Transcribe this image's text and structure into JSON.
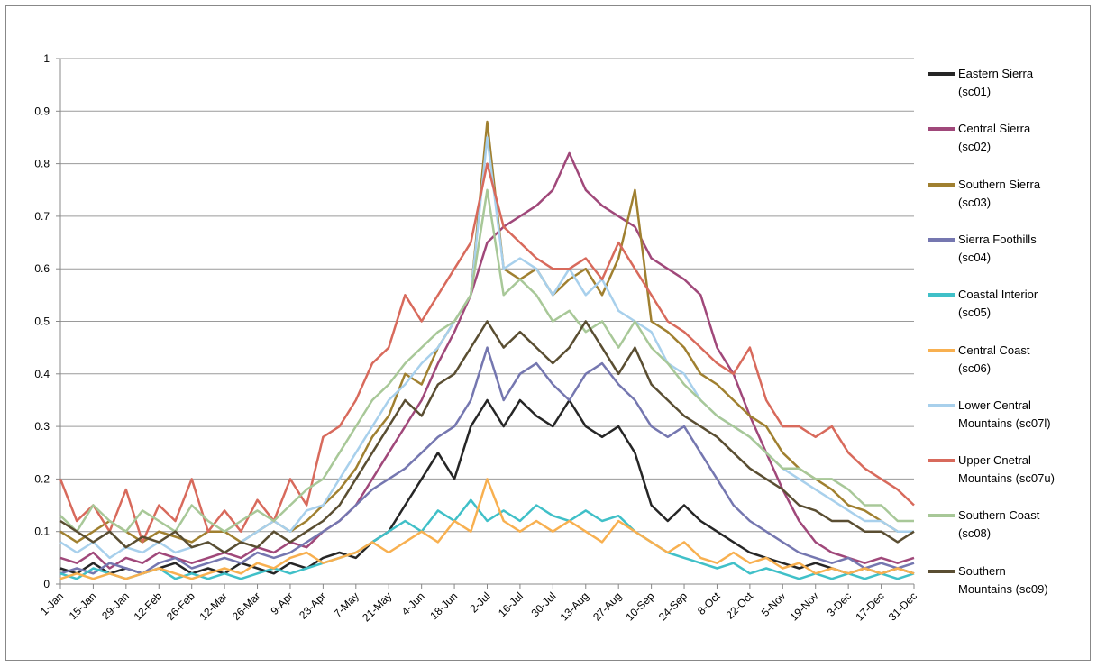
{
  "chart_data": {
    "type": "line",
    "grid": true,
    "legend": "right",
    "categories": [
      "1-Jan",
      null,
      "15-Jan",
      null,
      "29-Jan",
      null,
      "12-Feb",
      null,
      "26-Feb",
      null,
      "12-Mar",
      null,
      "26-Mar",
      null,
      "9-Apr",
      null,
      "23-Apr",
      null,
      "7-May",
      null,
      "21-May",
      null,
      "4-Jun",
      null,
      "18-Jun",
      null,
      "2-Jul",
      null,
      "16-Jul",
      null,
      "30-Jul",
      null,
      "13-Aug",
      null,
      "27-Aug",
      null,
      "10-Sep",
      null,
      "24-Sep",
      null,
      "8-Oct",
      null,
      "22-Oct",
      null,
      "5-Nov",
      null,
      "19-Nov",
      null,
      "3-Dec",
      null,
      "17-Dec",
      null,
      "31-Dec"
    ],
    "ylim": [
      0,
      1
    ],
    "yticks": [
      0,
      0.1,
      0.2,
      0.3,
      0.4,
      0.5,
      0.6,
      0.7,
      0.8,
      0.9,
      1
    ],
    "series": [
      {
        "name": "Eastern Sierra (sc01)",
        "color": "#262626",
        "values": [
          0.03,
          0.02,
          0.04,
          0.02,
          0.03,
          0.02,
          0.03,
          0.04,
          0.02,
          0.03,
          0.02,
          0.04,
          0.03,
          0.02,
          0.04,
          0.03,
          0.05,
          0.06,
          0.05,
          0.08,
          0.1,
          0.15,
          0.2,
          0.25,
          0.2,
          0.3,
          0.35,
          0.3,
          0.35,
          0.32,
          0.3,
          0.35,
          0.3,
          0.28,
          0.3,
          0.25,
          0.15,
          0.12,
          0.15,
          0.12,
          0.1,
          0.08,
          0.06,
          0.05,
          0.04,
          0.03,
          0.04,
          0.03,
          0.02,
          0.03,
          0.02,
          0.03,
          0.02
        ]
      },
      {
        "name": "Central Sierra (sc02)",
        "color": "#a0487a",
        "values": [
          0.05,
          0.04,
          0.06,
          0.03,
          0.05,
          0.04,
          0.06,
          0.05,
          0.04,
          0.05,
          0.06,
          0.05,
          0.07,
          0.06,
          0.08,
          0.07,
          0.1,
          0.12,
          0.15,
          0.2,
          0.25,
          0.3,
          0.35,
          0.42,
          0.48,
          0.55,
          0.65,
          0.68,
          0.7,
          0.72,
          0.75,
          0.82,
          0.75,
          0.72,
          0.7,
          0.68,
          0.62,
          0.6,
          0.58,
          0.55,
          0.45,
          0.4,
          0.32,
          0.25,
          0.18,
          0.12,
          0.08,
          0.06,
          0.05,
          0.04,
          0.05,
          0.04,
          0.05
        ]
      },
      {
        "name": "Southern Sierra (sc03)",
        "color": "#a08030",
        "values": [
          0.1,
          0.08,
          0.1,
          0.12,
          0.1,
          0.08,
          0.1,
          0.09,
          0.08,
          0.1,
          0.1,
          0.08,
          0.1,
          0.12,
          0.1,
          0.12,
          0.15,
          0.18,
          0.22,
          0.28,
          0.32,
          0.4,
          0.38,
          0.45,
          0.5,
          0.55,
          0.88,
          0.6,
          0.58,
          0.6,
          0.55,
          0.58,
          0.6,
          0.55,
          0.62,
          0.75,
          0.5,
          0.48,
          0.45,
          0.4,
          0.38,
          0.35,
          0.32,
          0.3,
          0.25,
          0.22,
          0.2,
          0.18,
          0.15,
          0.14,
          0.12,
          0.1,
          0.1
        ]
      },
      {
        "name": "Sierra Foothills (sc04)",
        "color": "#7577b0",
        "values": [
          0.02,
          0.03,
          0.02,
          0.04,
          0.03,
          0.02,
          0.04,
          0.05,
          0.03,
          0.04,
          0.05,
          0.04,
          0.06,
          0.05,
          0.06,
          0.08,
          0.1,
          0.12,
          0.15,
          0.18,
          0.2,
          0.22,
          0.25,
          0.28,
          0.3,
          0.35,
          0.45,
          0.35,
          0.4,
          0.42,
          0.38,
          0.35,
          0.4,
          0.42,
          0.38,
          0.35,
          0.3,
          0.28,
          0.3,
          0.25,
          0.2,
          0.15,
          0.12,
          0.1,
          0.08,
          0.06,
          0.05,
          0.04,
          0.05,
          0.03,
          0.04,
          0.03,
          0.04
        ]
      },
      {
        "name": "Coastal Interior (sc05)",
        "color": "#40c0c8",
        "values": [
          0.02,
          0.01,
          0.03,
          0.02,
          0.01,
          0.02,
          0.03,
          0.01,
          0.02,
          0.01,
          0.02,
          0.01,
          0.02,
          0.03,
          0.02,
          0.03,
          0.04,
          0.05,
          0.06,
          0.08,
          0.1,
          0.12,
          0.1,
          0.14,
          0.12,
          0.16,
          0.12,
          0.14,
          0.12,
          0.15,
          0.13,
          0.12,
          0.14,
          0.12,
          0.13,
          0.1,
          0.08,
          0.06,
          0.05,
          0.04,
          0.03,
          0.04,
          0.02,
          0.03,
          0.02,
          0.01,
          0.02,
          0.01,
          0.02,
          0.01,
          0.02,
          0.01,
          0.02
        ]
      },
      {
        "name": "Central Coast (sc06)",
        "color": "#f8b050",
        "values": [
          0.01,
          0.02,
          0.01,
          0.02,
          0.01,
          0.02,
          0.03,
          0.02,
          0.01,
          0.02,
          0.03,
          0.02,
          0.04,
          0.03,
          0.05,
          0.06,
          0.04,
          0.05,
          0.06,
          0.08,
          0.06,
          0.08,
          0.1,
          0.08,
          0.12,
          0.1,
          0.2,
          0.12,
          0.1,
          0.12,
          0.1,
          0.12,
          0.1,
          0.08,
          0.12,
          0.1,
          0.08,
          0.06,
          0.08,
          0.05,
          0.04,
          0.06,
          0.04,
          0.05,
          0.03,
          0.04,
          0.02,
          0.03,
          0.02,
          0.03,
          0.02,
          0.03,
          0.02
        ]
      },
      {
        "name": "Lower Central Mountains (sc07l)",
        "color": "#a8d0ec",
        "values": [
          0.08,
          0.06,
          0.08,
          0.05,
          0.07,
          0.06,
          0.08,
          0.06,
          0.07,
          0.08,
          0.06,
          0.08,
          0.1,
          0.12,
          0.1,
          0.14,
          0.15,
          0.2,
          0.25,
          0.3,
          0.35,
          0.38,
          0.42,
          0.45,
          0.5,
          0.55,
          0.85,
          0.6,
          0.62,
          0.6,
          0.55,
          0.6,
          0.55,
          0.58,
          0.52,
          0.5,
          0.48,
          0.42,
          0.4,
          0.35,
          0.32,
          0.3,
          0.28,
          0.25,
          0.22,
          0.2,
          0.18,
          0.16,
          0.14,
          0.12,
          0.12,
          0.1,
          0.1
        ]
      },
      {
        "name": "Upper Cnetral Mountains (sc07u)",
        "color": "#d86a5c",
        "values": [
          0.2,
          0.12,
          0.15,
          0.1,
          0.18,
          0.08,
          0.15,
          0.12,
          0.2,
          0.1,
          0.14,
          0.1,
          0.16,
          0.12,
          0.2,
          0.15,
          0.28,
          0.3,
          0.35,
          0.42,
          0.45,
          0.55,
          0.5,
          0.55,
          0.6,
          0.65,
          0.8,
          0.68,
          0.65,
          0.62,
          0.6,
          0.6,
          0.62,
          0.58,
          0.65,
          0.6,
          0.55,
          0.5,
          0.48,
          0.45,
          0.42,
          0.4,
          0.45,
          0.35,
          0.3,
          0.3,
          0.28,
          0.3,
          0.25,
          0.22,
          0.2,
          0.18,
          0.15
        ]
      },
      {
        "name": "Southern Coast (sc08)",
        "color": "#a8c898",
        "values": [
          0.13,
          0.1,
          0.15,
          0.12,
          0.1,
          0.14,
          0.12,
          0.1,
          0.15,
          0.12,
          0.1,
          0.12,
          0.14,
          0.12,
          0.15,
          0.18,
          0.2,
          0.25,
          0.3,
          0.35,
          0.38,
          0.42,
          0.45,
          0.48,
          0.5,
          0.55,
          0.75,
          0.55,
          0.58,
          0.55,
          0.5,
          0.52,
          0.48,
          0.5,
          0.45,
          0.5,
          0.45,
          0.42,
          0.38,
          0.35,
          0.32,
          0.3,
          0.28,
          0.25,
          0.22,
          0.22,
          0.2,
          0.2,
          0.18,
          0.15,
          0.15,
          0.12,
          0.12
        ]
      },
      {
        "name": "Southern Mountains (sc09)",
        "color": "#5a4e32",
        "values": [
          0.12,
          0.1,
          0.08,
          0.1,
          0.07,
          0.09,
          0.08,
          0.1,
          0.07,
          0.08,
          0.06,
          0.08,
          0.07,
          0.1,
          0.08,
          0.1,
          0.12,
          0.15,
          0.2,
          0.25,
          0.3,
          0.35,
          0.32,
          0.38,
          0.4,
          0.45,
          0.5,
          0.45,
          0.48,
          0.45,
          0.42,
          0.45,
          0.5,
          0.45,
          0.4,
          0.45,
          0.38,
          0.35,
          0.32,
          0.3,
          0.28,
          0.25,
          0.22,
          0.2,
          0.18,
          0.15,
          0.14,
          0.12,
          0.12,
          0.1,
          0.1,
          0.08,
          0.1
        ]
      }
    ]
  }
}
